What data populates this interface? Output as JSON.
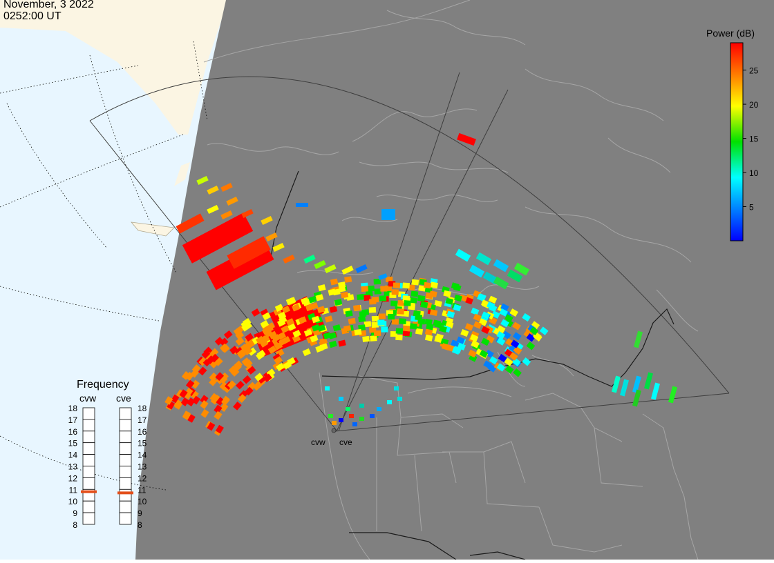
{
  "header": {
    "date": "November, 3 2022",
    "time": "0252:00 UT"
  },
  "colorbar": {
    "title": "Power (dB)",
    "ticks": [
      25,
      20,
      15,
      10,
      5
    ],
    "range": [
      0,
      29
    ],
    "stops": [
      "#ff0000",
      "#ff8c00",
      "#ffff00",
      "#00e000",
      "#00ffff",
      "#0080ff",
      "#0000ff"
    ]
  },
  "colors": {
    "land_dark": "#808080",
    "land_light": "#fbf5e3",
    "ocean": "#e8f6ff",
    "coastline": "#a6a6a6",
    "indicator": "#e34f1a"
  },
  "frequency": {
    "title": "Frequency",
    "radars": [
      {
        "code": "cvw",
        "freq_mhz": 10.8
      },
      {
        "code": "cve",
        "freq_mhz": 10.7
      }
    ],
    "scale": [
      18,
      17,
      16,
      15,
      14,
      13,
      12,
      11,
      10,
      9,
      8
    ]
  },
  "radars": {
    "left_label": "cvw",
    "right_label": "cve"
  }
}
